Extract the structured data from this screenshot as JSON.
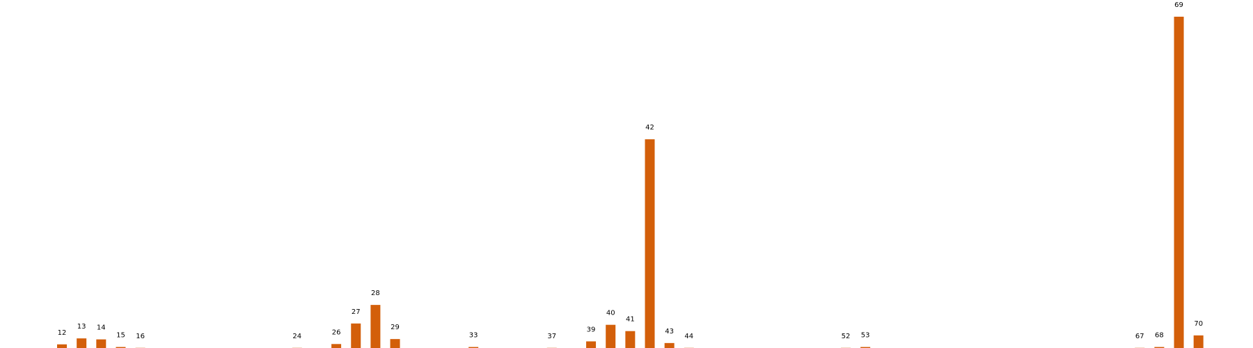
{
  "chart_data": {
    "type": "bar",
    "title": "",
    "xlabel": "",
    "ylabel": "",
    "grid": false,
    "legend": "none",
    "bar_color": "#d35f0a",
    "categories": [
      "12",
      "13",
      "14",
      "15",
      "16",
      "24",
      "26",
      "27",
      "28",
      "29",
      "33",
      "37",
      "39",
      "40",
      "41",
      "42",
      "43",
      "44",
      "52",
      "53",
      "67",
      "68",
      "69",
      "70"
    ],
    "values": [
      1.1,
      2.9,
      2.6,
      0.3,
      0.05,
      0.05,
      1.2,
      7.4,
      13.0,
      2.7,
      0.3,
      0.05,
      2.0,
      7.0,
      5.1,
      63.0,
      1.5,
      0.05,
      0.05,
      0.3,
      0.05,
      0.3,
      100.0,
      3.8
    ],
    "ylim": [
      0,
      100
    ]
  }
}
